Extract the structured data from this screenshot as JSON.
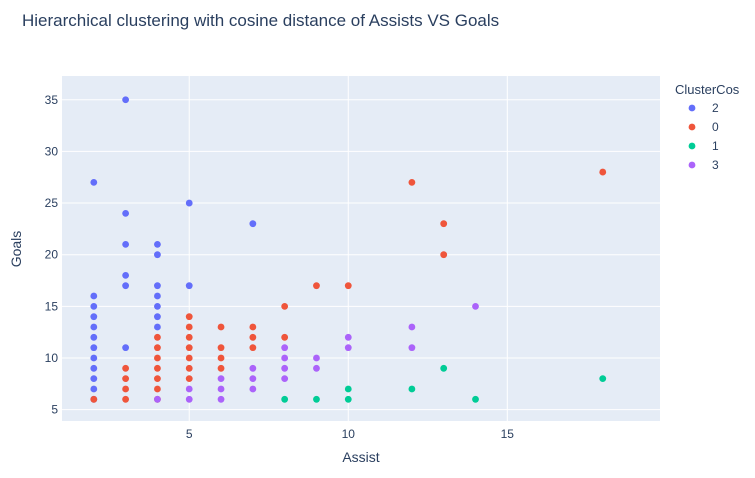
{
  "chart_data": {
    "type": "scatter",
    "title": "Hierarchical clustering with cosine distance of Assists VS Goals",
    "xlabel": "Assist",
    "ylabel": "Goals",
    "xlim": [
      1,
      19.8
    ],
    "ylim": [
      3.9,
      37.3
    ],
    "x_ticks": [
      5,
      10,
      15
    ],
    "y_ticks": [
      5,
      10,
      15,
      20,
      25,
      30,
      35
    ],
    "grid": true,
    "legend_title": "ClusterCos",
    "legend_position": "right",
    "series": [
      {
        "name": "2",
        "color": "#636efa",
        "points": [
          [
            2,
            6
          ],
          [
            2,
            7
          ],
          [
            2,
            8
          ],
          [
            2,
            9
          ],
          [
            2,
            10
          ],
          [
            2,
            11
          ],
          [
            2,
            12
          ],
          [
            2,
            13
          ],
          [
            2,
            14
          ],
          [
            2,
            15
          ],
          [
            2,
            16
          ],
          [
            2,
            27
          ],
          [
            3,
            11
          ],
          [
            3,
            17
          ],
          [
            3,
            18
          ],
          [
            3,
            21
          ],
          [
            3,
            24
          ],
          [
            3,
            35
          ],
          [
            4,
            13
          ],
          [
            4,
            14
          ],
          [
            4,
            15
          ],
          [
            4,
            16
          ],
          [
            4,
            17
          ],
          [
            4,
            20
          ],
          [
            4,
            21
          ],
          [
            5,
            17
          ],
          [
            5,
            25
          ],
          [
            7,
            23
          ]
        ]
      },
      {
        "name": "0",
        "color": "#ef553b",
        "points": [
          [
            2,
            6
          ],
          [
            3,
            6
          ],
          [
            3,
            7
          ],
          [
            3,
            8
          ],
          [
            3,
            9
          ],
          [
            4,
            6
          ],
          [
            4,
            7
          ],
          [
            4,
            8
          ],
          [
            4,
            9
          ],
          [
            4,
            10
          ],
          [
            4,
            11
          ],
          [
            4,
            12
          ],
          [
            5,
            8
          ],
          [
            5,
            9
          ],
          [
            5,
            10
          ],
          [
            5,
            11
          ],
          [
            5,
            12
          ],
          [
            5,
            13
          ],
          [
            5,
            14
          ],
          [
            6,
            9
          ],
          [
            6,
            10
          ],
          [
            6,
            11
          ],
          [
            6,
            13
          ],
          [
            7,
            11
          ],
          [
            7,
            12
          ],
          [
            7,
            13
          ],
          [
            8,
            12
          ],
          [
            8,
            15
          ],
          [
            9,
            17
          ],
          [
            10,
            17
          ],
          [
            12,
            27
          ],
          [
            13,
            20
          ],
          [
            13,
            23
          ],
          [
            18,
            28
          ]
        ]
      },
      {
        "name": "1",
        "color": "#00cc96",
        "points": [
          [
            8,
            6
          ],
          [
            9,
            6
          ],
          [
            10,
            6
          ],
          [
            10,
            7
          ],
          [
            12,
            7
          ],
          [
            13,
            9
          ],
          [
            14,
            6
          ],
          [
            18,
            8
          ]
        ]
      },
      {
        "name": "3",
        "color": "#ab63fa",
        "points": [
          [
            4,
            6
          ],
          [
            5,
            6
          ],
          [
            5,
            7
          ],
          [
            6,
            6
          ],
          [
            6,
            7
          ],
          [
            6,
            8
          ],
          [
            7,
            7
          ],
          [
            7,
            8
          ],
          [
            7,
            9
          ],
          [
            8,
            8
          ],
          [
            8,
            9
          ],
          [
            8,
            10
          ],
          [
            8,
            11
          ],
          [
            9,
            9
          ],
          [
            9,
            10
          ],
          [
            10,
            11
          ],
          [
            10,
            12
          ],
          [
            12,
            11
          ],
          [
            12,
            13
          ],
          [
            14,
            15
          ]
        ]
      }
    ]
  }
}
